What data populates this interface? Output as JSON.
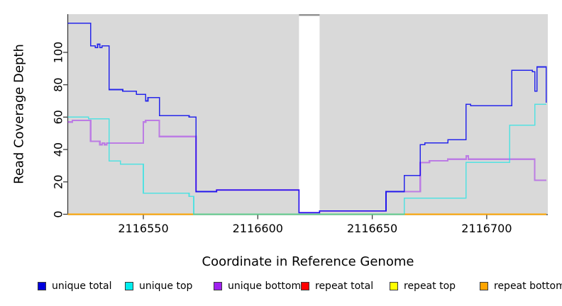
{
  "figure_title": "",
  "axes": {
    "x_title": "Coordinate in Reference Genome",
    "y_title": "Read Coverage Depth"
  },
  "chart_data": {
    "type": "line",
    "subtype": "step-coverage",
    "title": "",
    "xlabel": "Coordinate in Reference Genome",
    "ylabel": "Read Coverage Depth",
    "xlim": [
      2116517,
      2116727
    ],
    "ylim": [
      0,
      123
    ],
    "x_ticks": [
      2116550,
      2116600,
      2116650,
      2116700
    ],
    "y_ticks": [
      0,
      20,
      40,
      60,
      80,
      100
    ],
    "grid": false,
    "plot_bg_color": "#d9d9d9",
    "gap_region": {
      "x_start": 2116618,
      "x_end": 2116627,
      "fill": "#ffffff",
      "top_cap_color": "#8f8f8f"
    },
    "zero_line_overlap_color": "#9ed0a0",
    "legend_position": "bottom",
    "series": [
      {
        "name": "repeat total",
        "color": "#ff0000",
        "opacity": 1,
        "width": 1.4,
        "points": [
          [
            2116517,
            0
          ],
          [
            2116726,
            0
          ]
        ]
      },
      {
        "name": "repeat top",
        "color": "#ffff00",
        "opacity": 1,
        "width": 1.4,
        "points": [
          [
            2116517,
            0
          ],
          [
            2116726,
            0
          ]
        ]
      },
      {
        "name": "repeat bottom",
        "color": "#ffa500",
        "opacity": 1,
        "width": 1.8,
        "points": [
          [
            2116517,
            0
          ],
          [
            2116726,
            0
          ]
        ]
      },
      {
        "name": "unique bottom",
        "color": "#a020f0",
        "opacity": 0.5,
        "width": 2.2,
        "points": [
          [
            2116517,
            57
          ],
          [
            2116519,
            57
          ],
          [
            2116519,
            58
          ],
          [
            2116527,
            58
          ],
          [
            2116527,
            45
          ],
          [
            2116531,
            45
          ],
          [
            2116531,
            43
          ],
          [
            2116532,
            43
          ],
          [
            2116532,
            44
          ],
          [
            2116533,
            44
          ],
          [
            2116533,
            43
          ],
          [
            2116534,
            43
          ],
          [
            2116534,
            44
          ],
          [
            2116550,
            44
          ],
          [
            2116550,
            57
          ],
          [
            2116551,
            57
          ],
          [
            2116551,
            58
          ],
          [
            2116557,
            58
          ],
          [
            2116557,
            48
          ],
          [
            2116573,
            48
          ],
          [
            2116573,
            14
          ],
          [
            2116582,
            14
          ],
          [
            2116582,
            15
          ],
          [
            2116618,
            15
          ],
          [
            2116618,
            1
          ],
          [
            2116627,
            1
          ],
          [
            2116627,
            2
          ],
          [
            2116656,
            2
          ],
          [
            2116656,
            14
          ],
          [
            2116671,
            14
          ],
          [
            2116671,
            32
          ],
          [
            2116675,
            32
          ],
          [
            2116675,
            33
          ],
          [
            2116683,
            33
          ],
          [
            2116683,
            34
          ],
          [
            2116691,
            34
          ],
          [
            2116691,
            36
          ],
          [
            2116692,
            36
          ],
          [
            2116692,
            34
          ],
          [
            2116721,
            34
          ],
          [
            2116721,
            21
          ],
          [
            2116726,
            21
          ]
        ]
      },
      {
        "name": "unique top",
        "color": "#00e5e5",
        "opacity": 0.62,
        "width": 1.6,
        "points": [
          [
            2116517,
            60
          ],
          [
            2116526,
            60
          ],
          [
            2116526,
            59
          ],
          [
            2116535,
            59
          ],
          [
            2116535,
            33
          ],
          [
            2116540,
            33
          ],
          [
            2116540,
            31
          ],
          [
            2116550,
            31
          ],
          [
            2116550,
            13
          ],
          [
            2116570,
            13
          ],
          [
            2116570,
            11
          ],
          [
            2116572,
            11
          ],
          [
            2116572,
            0
          ],
          [
            2116664,
            0
          ],
          [
            2116664,
            10
          ],
          [
            2116691,
            10
          ],
          [
            2116691,
            32
          ],
          [
            2116710,
            32
          ],
          [
            2116710,
            55
          ],
          [
            2116721,
            55
          ],
          [
            2116721,
            68
          ],
          [
            2116726,
            68
          ]
        ]
      },
      {
        "name": "unique total",
        "color": "#0000ee",
        "opacity": 0.82,
        "width": 1.6,
        "points": [
          [
            2116517,
            118
          ],
          [
            2116527,
            118
          ],
          [
            2116527,
            104
          ],
          [
            2116529,
            104
          ],
          [
            2116529,
            103
          ],
          [
            2116530,
            103
          ],
          [
            2116530,
            105
          ],
          [
            2116531,
            105
          ],
          [
            2116531,
            103
          ],
          [
            2116532,
            103
          ],
          [
            2116532,
            104
          ],
          [
            2116535,
            104
          ],
          [
            2116535,
            77
          ],
          [
            2116541,
            77
          ],
          [
            2116541,
            76
          ],
          [
            2116547,
            76
          ],
          [
            2116547,
            74
          ],
          [
            2116551,
            74
          ],
          [
            2116551,
            70
          ],
          [
            2116552,
            70
          ],
          [
            2116552,
            72
          ],
          [
            2116557,
            72
          ],
          [
            2116557,
            61
          ],
          [
            2116570,
            61
          ],
          [
            2116570,
            60
          ],
          [
            2116573,
            60
          ],
          [
            2116573,
            14
          ],
          [
            2116582,
            14
          ],
          [
            2116582,
            15
          ],
          [
            2116618,
            15
          ],
          [
            2116618,
            1
          ],
          [
            2116627,
            1
          ],
          [
            2116627,
            2
          ],
          [
            2116656,
            2
          ],
          [
            2116656,
            14
          ],
          [
            2116664,
            14
          ],
          [
            2116664,
            24
          ],
          [
            2116671,
            24
          ],
          [
            2116671,
            43
          ],
          [
            2116673,
            43
          ],
          [
            2116673,
            44
          ],
          [
            2116683,
            44
          ],
          [
            2116683,
            46
          ],
          [
            2116691,
            46
          ],
          [
            2116691,
            68
          ],
          [
            2116693,
            68
          ],
          [
            2116693,
            67
          ],
          [
            2116711,
            67
          ],
          [
            2116711,
            89
          ],
          [
            2116720,
            89
          ],
          [
            2116720,
            88
          ],
          [
            2116721,
            88
          ],
          [
            2116721,
            76
          ],
          [
            2116722,
            76
          ],
          [
            2116722,
            91
          ],
          [
            2116726,
            91
          ],
          [
            2116726,
            69
          ]
        ]
      }
    ]
  },
  "legend": {
    "items": [
      {
        "label": "unique total",
        "color": "#0000dd"
      },
      {
        "label": "unique top",
        "color": "#00eeee"
      },
      {
        "label": "unique bottom",
        "color": "#a020f0"
      },
      {
        "label": "repeat total",
        "color": "#ff0000"
      },
      {
        "label": "repeat top",
        "color": "#ffff00"
      },
      {
        "label": "repeat bottom",
        "color": "#ffa500"
      }
    ]
  }
}
